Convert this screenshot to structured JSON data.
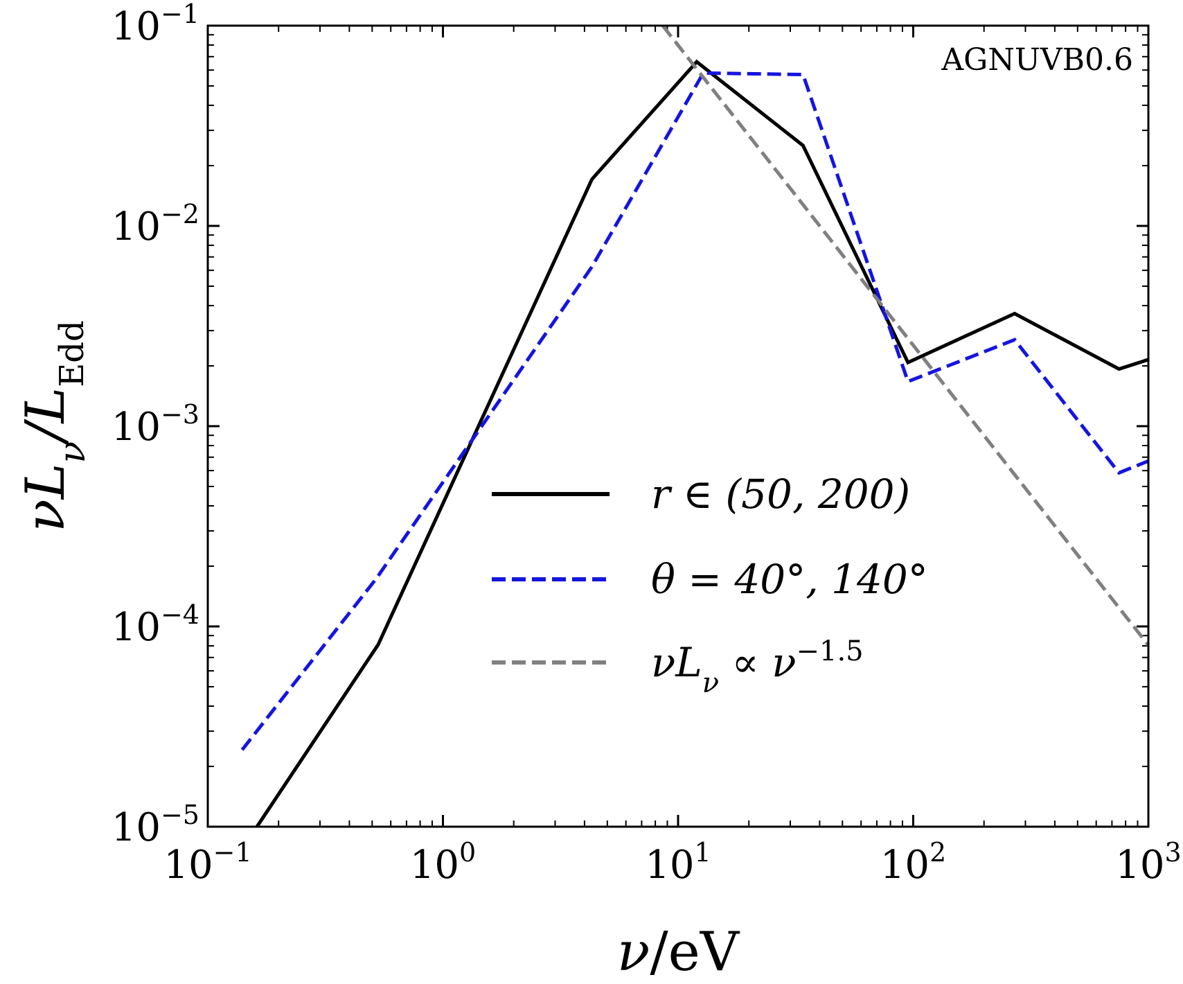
{
  "chart_data": {
    "type": "line",
    "annotation": "AGNUVB0.6",
    "xlabel_main": "ν",
    "xlabel_unit": "/eV",
    "ylabel_main": "νL",
    "ylabel_sub_nu": "ν",
    "ylabel_slash": "/L",
    "ylabel_sub_edd": "Edd",
    "xscale": "log",
    "yscale": "log",
    "xlim": [
      0.1,
      1000
    ],
    "ylim": [
      1e-05,
      0.1
    ],
    "grid": false,
    "legend_placement": "center-right",
    "x_ticks": [
      {
        "base": "10",
        "exp": "−1",
        "value": 0.1
      },
      {
        "base": "10",
        "exp": "0",
        "value": 1
      },
      {
        "base": "10",
        "exp": "1",
        "value": 10
      },
      {
        "base": "10",
        "exp": "2",
        "value": 100
      },
      {
        "base": "10",
        "exp": "3",
        "value": 1000
      }
    ],
    "y_ticks": [
      {
        "base": "10",
        "exp": "−5",
        "value": 1e-05
      },
      {
        "base": "10",
        "exp": "−4",
        "value": 0.0001
      },
      {
        "base": "10",
        "exp": "−3",
        "value": 0.001
      },
      {
        "base": "10",
        "exp": "−2",
        "value": 0.01
      },
      {
        "base": "10",
        "exp": "−1",
        "value": 0.1
      }
    ],
    "series": [
      {
        "name": "r ∈ (50, 200)",
        "color": "#000000",
        "dash": "solid",
        "points": [
          [
            0.16,
            9.8e-06
          ],
          [
            0.53,
            8.1e-05
          ],
          [
            4.3,
            0.0171
          ],
          [
            12.0,
            0.066
          ],
          [
            34.0,
            0.0252
          ],
          [
            95.0,
            0.00208
          ],
          [
            270.0,
            0.00365
          ],
          [
            750.0,
            0.00193
          ],
          [
            1000.0,
            0.00215
          ]
        ]
      },
      {
        "name": "θ = 40°, 140°",
        "color": "#1515e0",
        "dash": "dashed",
        "points": [
          [
            0.14,
            2.42e-05
          ],
          [
            0.52,
            0.000173
          ],
          [
            4.3,
            0.00625
          ],
          [
            12.8,
            0.058
          ],
          [
            34.0,
            0.057
          ],
          [
            95.0,
            0.00167
          ],
          [
            270.0,
            0.0027
          ],
          [
            750.0,
            0.000585
          ],
          [
            1000.0,
            0.00067
          ]
        ]
      },
      {
        "name": "νL",
        "name_sub": "ν",
        "name_tail": " ∝ ν",
        "name_sup": "−1.5",
        "color": "#808080",
        "dash": "dashed",
        "points": [
          [
            8.6,
            0.1
          ],
          [
            1000.0,
            8.06e-05
          ]
        ]
      }
    ]
  }
}
